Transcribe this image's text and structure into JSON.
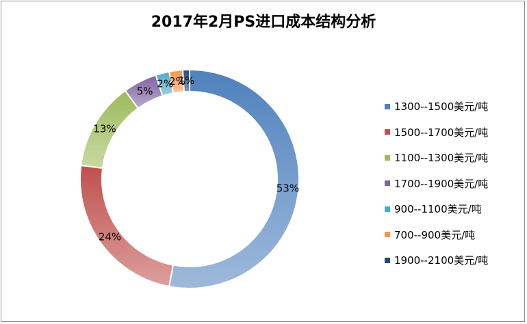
{
  "chart_data": {
    "type": "pie",
    "title": "2017年2月PS进口成本结构分析",
    "categories": [
      "1300--1500美元/吨",
      "1500--1700美元/吨",
      "1100--1300美元/吨",
      "1700--1900美元/吨",
      "900--1100美元/吨",
      "700--900美元/吨",
      "1900--2100美元/吨"
    ],
    "values": [
      53,
      24,
      13,
      5,
      2,
      2,
      1
    ],
    "data_labels": [
      "53%",
      "24%",
      "13%",
      "5%",
      "2%",
      "2%",
      "1%"
    ],
    "colors": [
      "#4f81bd",
      "#c0504d",
      "#9bbb59",
      "#8064a2",
      "#4bacc6",
      "#f79646",
      "#1f497d"
    ],
    "donut": true,
    "legend_position": "right"
  }
}
